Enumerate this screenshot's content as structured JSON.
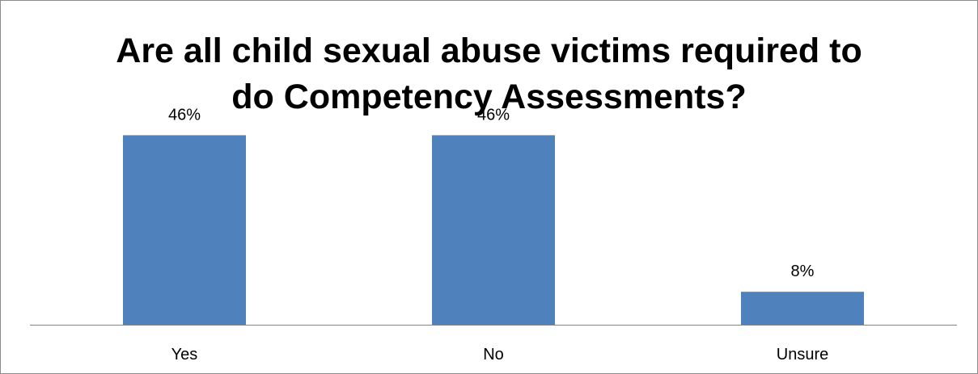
{
  "chart_data": {
    "type": "bar",
    "title_lines": [
      "Are all child sexual abuse victims required to",
      "do Competency Assessments?"
    ],
    "categories": [
      "Yes",
      "No",
      "Unsure"
    ],
    "values": [
      46,
      46,
      8
    ],
    "data_labels": [
      "46%",
      "46%",
      "8%"
    ],
    "xlabel": "",
    "ylabel": "",
    "ylim": [
      0,
      50
    ],
    "grid": false,
    "legend": "none",
    "bar_color": "#4F81BD",
    "axis_color": "#868686"
  }
}
